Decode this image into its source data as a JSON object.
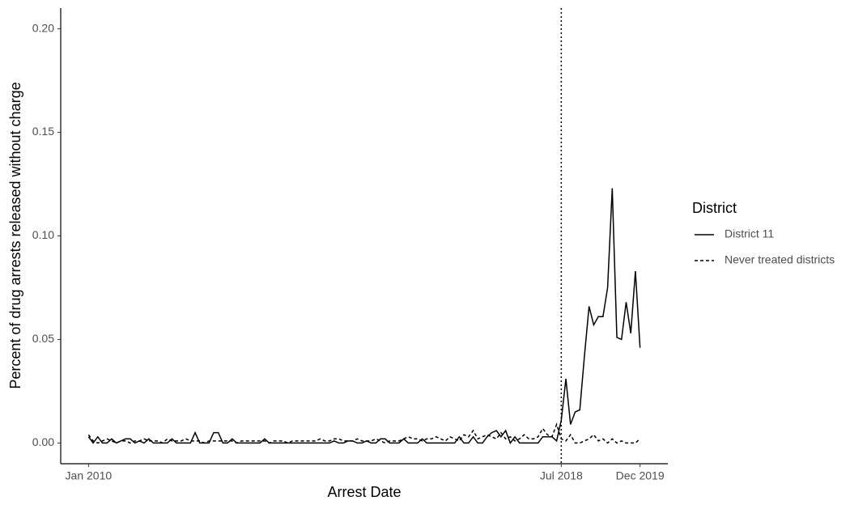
{
  "chart_data": {
    "type": "line",
    "x_label": "Arrest Date",
    "y_label": "Percent of drug arrests released without charge",
    "x": [
      "2010-01",
      "2010-02",
      "2010-03",
      "2010-04",
      "2010-05",
      "2010-06",
      "2010-07",
      "2010-08",
      "2010-09",
      "2010-10",
      "2010-11",
      "2010-12",
      "2011-01",
      "2011-02",
      "2011-03",
      "2011-04",
      "2011-05",
      "2011-06",
      "2011-07",
      "2011-08",
      "2011-09",
      "2011-10",
      "2011-11",
      "2011-12",
      "2012-01",
      "2012-02",
      "2012-03",
      "2012-04",
      "2012-05",
      "2012-06",
      "2012-07",
      "2012-08",
      "2012-09",
      "2012-10",
      "2012-11",
      "2012-12",
      "2013-01",
      "2013-02",
      "2013-03",
      "2013-04",
      "2013-05",
      "2013-06",
      "2013-07",
      "2013-08",
      "2013-09",
      "2013-10",
      "2013-11",
      "2013-12",
      "2014-01",
      "2014-02",
      "2014-03",
      "2014-04",
      "2014-05",
      "2014-06",
      "2014-07",
      "2014-08",
      "2014-09",
      "2014-10",
      "2014-11",
      "2014-12",
      "2015-01",
      "2015-02",
      "2015-03",
      "2015-04",
      "2015-05",
      "2015-06",
      "2015-07",
      "2015-08",
      "2015-09",
      "2015-10",
      "2015-11",
      "2015-12",
      "2016-01",
      "2016-02",
      "2016-03",
      "2016-04",
      "2016-05",
      "2016-06",
      "2016-07",
      "2016-08",
      "2016-09",
      "2016-10",
      "2016-11",
      "2016-12",
      "2017-01",
      "2017-02",
      "2017-03",
      "2017-04",
      "2017-05",
      "2017-06",
      "2017-07",
      "2017-08",
      "2017-09",
      "2017-10",
      "2017-11",
      "2017-12",
      "2018-01",
      "2018-02",
      "2018-03",
      "2018-04",
      "2018-05",
      "2018-06",
      "2018-07",
      "2018-08",
      "2018-09",
      "2018-10",
      "2018-11",
      "2018-12",
      "2019-01",
      "2019-02",
      "2019-03",
      "2019-04",
      "2019-05",
      "2019-06",
      "2019-07",
      "2019-08",
      "2019-09",
      "2019-10",
      "2019-11",
      "2019-12"
    ],
    "series": [
      {
        "name": "District 11",
        "color": "#000000",
        "dash": "solid",
        "values": [
          0.003,
          0,
          0.003,
          0,
          0,
          0.002,
          0,
          0.001,
          0.002,
          0.002,
          0,
          0.001,
          0,
          0.002,
          0,
          0,
          0,
          0,
          0.002,
          0,
          0,
          0,
          0,
          0.005,
          0,
          0,
          0,
          0.005,
          0.005,
          0,
          0,
          0.002,
          0,
          0,
          0,
          0,
          0,
          0,
          0.002,
          0,
          0,
          0,
          0,
          0,
          0,
          0,
          0,
          0,
          0,
          0,
          0,
          0,
          0,
          0.001,
          0,
          0,
          0.001,
          0.001,
          0,
          0,
          0.001,
          0,
          0,
          0.002,
          0.002,
          0,
          0,
          0,
          0.002,
          0,
          0,
          0,
          0.002,
          0,
          0,
          0,
          0,
          0,
          0,
          0,
          0.003,
          0,
          0,
          0.003,
          0,
          0,
          0.003,
          0.005,
          0.006,
          0.003,
          0.006,
          0,
          0.003,
          0,
          0,
          0,
          0,
          0,
          0.003,
          0.003,
          0.003,
          0.001,
          0.011,
          0.031,
          0.009,
          0.015,
          0.016,
          0.042,
          0.066,
          0.057,
          0.061,
          0.061,
          0.075,
          0.123,
          0.051,
          0.05,
          0.068,
          0.053,
          0.083,
          0.046
        ]
      },
      {
        "name": "Never treated districts",
        "color": "#000000",
        "dash": "dashed",
        "values": [
          0.004,
          0.001,
          0,
          0.001,
          0.002,
          0.001,
          0,
          0.001,
          0.001,
          0,
          0.001,
          0.001,
          0.002,
          0.001,
          0.001,
          0.001,
          0,
          0.002,
          0.001,
          0.001,
          0.001,
          0.002,
          0.001,
          0.001,
          0.001,
          0,
          0.001,
          0.001,
          0.001,
          0.001,
          0.001,
          0.001,
          0,
          0.001,
          0.001,
          0.001,
          0.001,
          0.001,
          0.001,
          0,
          0.001,
          0.001,
          0.001,
          0,
          0.001,
          0.001,
          0.001,
          0.001,
          0.001,
          0.001,
          0.002,
          0.001,
          0.001,
          0.002,
          0.002,
          0.001,
          0.001,
          0.001,
          0.002,
          0.001,
          0.001,
          0.001,
          0.002,
          0.001,
          0,
          0.001,
          0.001,
          0.001,
          0.002,
          0.003,
          0.002,
          0.002,
          0.001,
          0.002,
          0.002,
          0.003,
          0.002,
          0.001,
          0.003,
          0.002,
          0.001,
          0.004,
          0.003,
          0.006,
          0.002,
          0.003,
          0.004,
          0.003,
          0.002,
          0.005,
          0.002,
          0.003,
          0.001,
          0.002,
          0.004,
          0.002,
          0.002,
          0.003,
          0.007,
          0.004,
          0.003,
          0.009,
          0.002,
          0.001,
          0.004,
          0,
          0,
          0.001,
          0.002,
          0.004,
          0.001,
          0.002,
          0,
          0.002,
          0,
          0.001,
          0,
          0,
          0,
          0.002
        ]
      }
    ],
    "xlim": [
      "2009-07",
      "2020-06"
    ],
    "xticks": [
      {
        "value": "2010-01",
        "label": "Jan 2010"
      },
      {
        "value": "2018-07",
        "label": "Jul 2018"
      },
      {
        "value": "2019-12",
        "label": "Dec 2019"
      }
    ],
    "ylim": [
      -0.01,
      0.21
    ],
    "yticks": [
      {
        "value": 0,
        "label": "0.00"
      },
      {
        "value": 0.05,
        "label": "0.05"
      },
      {
        "value": 0.1,
        "label": "0.10"
      },
      {
        "value": 0.15,
        "label": "0.15"
      },
      {
        "value": 0.2,
        "label": "0.20"
      }
    ],
    "vline": "2018-07",
    "legend_title": "District",
    "legend_position": "right",
    "grid": false
  }
}
